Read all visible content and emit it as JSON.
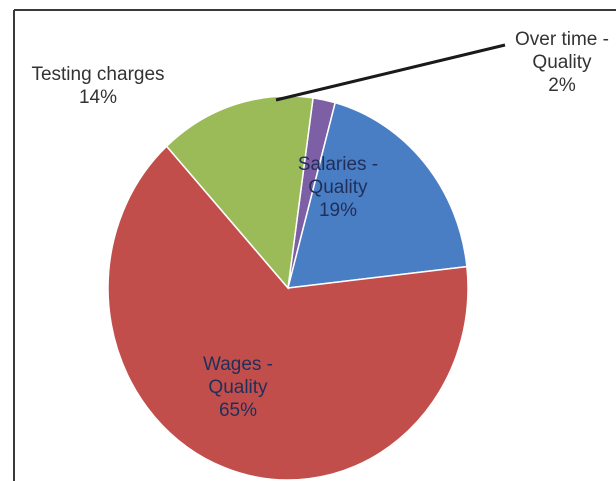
{
  "chart_data": {
    "type": "pie",
    "title": "",
    "slices": [
      {
        "label_lines": [
          "Over time -",
          "Quality"
        ],
        "pct_text": "2%",
        "value": 2,
        "color": "#7d5fa6"
      },
      {
        "label_lines": [
          "Salaries -",
          "Quality"
        ],
        "pct_text": "19%",
        "value": 19,
        "color": "#4a7ec4"
      },
      {
        "label_lines": [
          "Wages -",
          "Quality"
        ],
        "pct_text": "65%",
        "value": 65,
        "color": "#c24e4c"
      },
      {
        "label_lines": [
          "Testing charges"
        ],
        "pct_text": "14%",
        "value": 14,
        "color": "#9bbb59"
      }
    ]
  }
}
